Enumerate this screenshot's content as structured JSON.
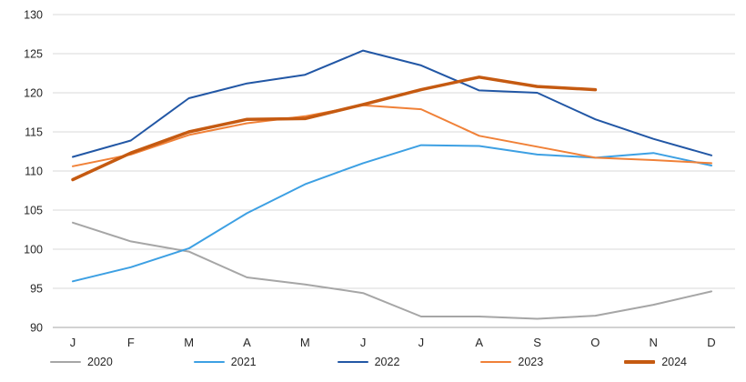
{
  "chart_data": {
    "type": "line",
    "title": "",
    "xlabel": "",
    "ylabel": "",
    "x_categories": [
      "J",
      "F",
      "M",
      "A",
      "M",
      "J",
      "J",
      "A",
      "S",
      "O",
      "N",
      "D"
    ],
    "ylim": [
      90,
      130
    ],
    "ytick_step": 5,
    "yticks": [
      90,
      95,
      100,
      105,
      110,
      115,
      120,
      125,
      130
    ],
    "grid": "horizontal",
    "legend_position": "bottom",
    "series": [
      {
        "name": "2020",
        "color": "#a6a6a6",
        "width": 2,
        "values": [
          103.4,
          101.0,
          99.7,
          96.4,
          95.5,
          94.4,
          91.4,
          91.4,
          91.1,
          91.5,
          92.9,
          94.6
        ]
      },
      {
        "name": "2021",
        "color": "#3da0e3",
        "width": 2,
        "values": [
          95.9,
          97.7,
          100.1,
          104.6,
          108.3,
          111.0,
          113.3,
          113.2,
          112.1,
          111.7,
          112.3,
          110.7
        ]
      },
      {
        "name": "2022",
        "color": "#2257a5",
        "width": 2,
        "values": [
          111.8,
          113.9,
          119.3,
          121.2,
          122.3,
          125.4,
          123.5,
          120.3,
          120.0,
          116.6,
          114.1,
          112.0
        ]
      },
      {
        "name": "2023",
        "color": "#f08138",
        "width": 2,
        "values": [
          110.6,
          112.1,
          114.6,
          116.1,
          117.0,
          118.4,
          117.9,
          114.5,
          113.1,
          111.7,
          111.4,
          111.0
        ]
      },
      {
        "name": "2024",
        "color": "#c55a11",
        "width": 3.5,
        "values": [
          108.9,
          112.3,
          115.0,
          116.6,
          116.7,
          118.5,
          120.4,
          122.0,
          120.8,
          120.4,
          null,
          null
        ]
      }
    ]
  },
  "colors": {
    "background": "#ffffff",
    "grid": "#d9d9d9",
    "axis": "#a6a6a6",
    "tick_label": "#262626"
  }
}
